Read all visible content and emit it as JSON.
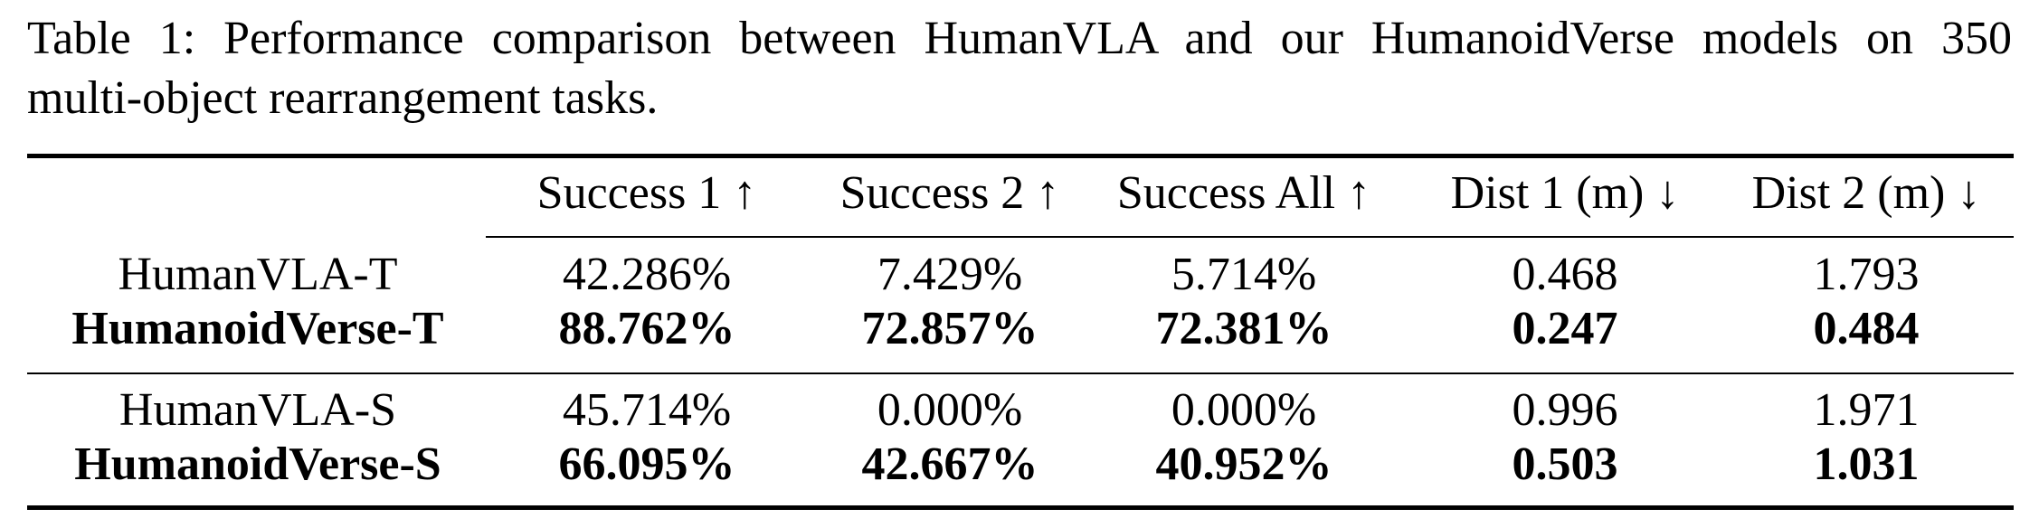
{
  "caption": {
    "line1": "Table 1: Performance comparison between HumanVLA and our HumanoidVerse models on 350",
    "line2": "multi-object rearrangement tasks."
  },
  "table": {
    "headers": [
      "",
      "Success 1 ↑",
      "Success 2 ↑",
      "Success All ↑",
      "Dist 1 (m) ↓",
      "Dist 2 (m) ↓"
    ],
    "rows": [
      {
        "method": "HumanVLA-T",
        "bold": false,
        "values": [
          "42.286%",
          "7.429%",
          "5.714%",
          "0.468",
          "1.793"
        ]
      },
      {
        "method": "HumanoidVerse-T",
        "bold": true,
        "values": [
          "88.762%",
          "72.857%",
          "72.381%",
          "0.247",
          "0.484"
        ]
      },
      {
        "method": "HumanVLA-S",
        "bold": false,
        "values": [
          "45.714%",
          "0.000%",
          "0.000%",
          "0.996",
          "1.971"
        ]
      },
      {
        "method": "HumanoidVerse-S",
        "bold": true,
        "values": [
          "66.095%",
          "42.667%",
          "40.952%",
          "0.503",
          "1.031"
        ]
      }
    ]
  }
}
